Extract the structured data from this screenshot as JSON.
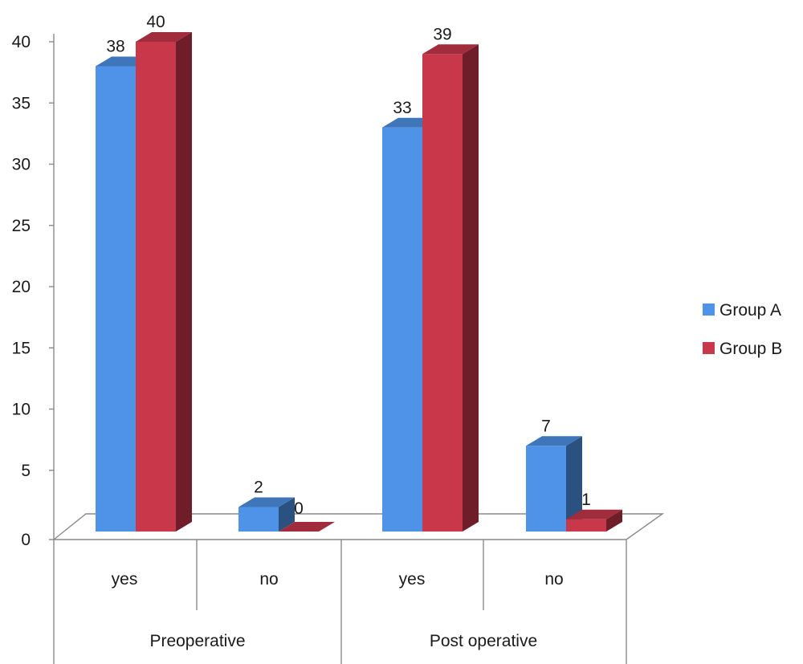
{
  "chart_data": {
    "type": "bar",
    "groups": [
      {
        "label": "Preoperative",
        "categories": [
          "yes",
          "no"
        ]
      },
      {
        "label": "Post operative",
        "categories": [
          "yes",
          "no"
        ]
      }
    ],
    "categories": [
      "yes",
      "no",
      "yes",
      "no"
    ],
    "series": [
      {
        "name": "Group A",
        "values": [
          38,
          2,
          33,
          7
        ],
        "color": "#4f93e8"
      },
      {
        "name": "Group B",
        "values": [
          40,
          0,
          39,
          1
        ],
        "color": "#c9374a"
      }
    ],
    "ylim": [
      0,
      40
    ],
    "yticks": [
      0,
      5,
      10,
      15,
      20,
      25,
      30,
      35,
      40
    ],
    "grid": false,
    "legend_position": "right",
    "title": "",
    "xlabel": "",
    "ylabel": "",
    "data_labels": true,
    "three_d": true
  }
}
